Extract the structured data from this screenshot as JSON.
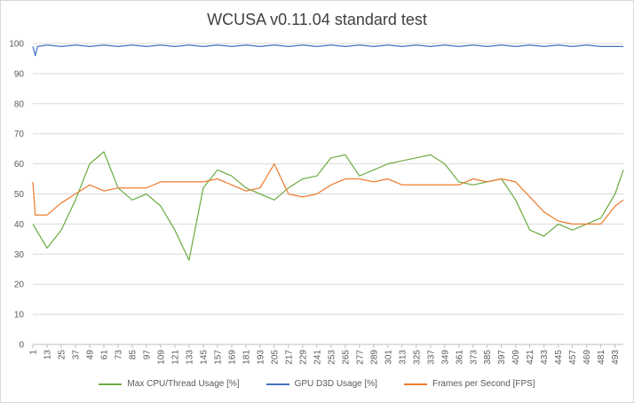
{
  "chart_data": {
    "type": "line",
    "title": "WCUSA v0.11.04 standard test",
    "xlabel": "",
    "ylabel": "",
    "ylim": [
      0,
      100
    ],
    "yticks": [
      0,
      10,
      20,
      30,
      40,
      50,
      60,
      70,
      80,
      90,
      100
    ],
    "xlim": [
      1,
      500
    ],
    "xticks": [
      1,
      13,
      25,
      37,
      49,
      61,
      73,
      85,
      97,
      109,
      121,
      133,
      145,
      157,
      169,
      181,
      193,
      205,
      217,
      229,
      241,
      253,
      265,
      277,
      289,
      301,
      313,
      325,
      337,
      349,
      361,
      373,
      385,
      397,
      409,
      421,
      433,
      445,
      457,
      469,
      481,
      493
    ],
    "grid": true,
    "legend_position": "bottom",
    "series": [
      {
        "name": "Max CPU/Thread Usage [%]",
        "color": "#70ad47",
        "x": [
          1,
          13,
          25,
          37,
          49,
          61,
          73,
          85,
          97,
          109,
          121,
          133,
          145,
          157,
          169,
          181,
          193,
          205,
          217,
          229,
          241,
          253,
          265,
          277,
          289,
          301,
          313,
          325,
          337,
          349,
          361,
          373,
          385,
          397,
          409,
          421,
          433,
          445,
          457,
          469,
          481,
          493,
          500
        ],
        "values": [
          40,
          32,
          38,
          48,
          60,
          64,
          52,
          48,
          50,
          46,
          38,
          28,
          52,
          58,
          56,
          52,
          50,
          48,
          52,
          55,
          56,
          62,
          63,
          56,
          58,
          60,
          61,
          62,
          63,
          60,
          54,
          53,
          54,
          55,
          48,
          38,
          36,
          40,
          38,
          40,
          42,
          50,
          58
        ]
      },
      {
        "name": "GPU D3D Usage [%]",
        "color": "#4472c4",
        "x": [
          1,
          3,
          5,
          13,
          25,
          37,
          49,
          61,
          73,
          85,
          97,
          109,
          121,
          133,
          145,
          157,
          169,
          181,
          193,
          205,
          217,
          229,
          241,
          253,
          265,
          277,
          289,
          301,
          313,
          325,
          337,
          349,
          361,
          373,
          385,
          397,
          409,
          421,
          433,
          445,
          457,
          469,
          481,
          493,
          500
        ],
        "values": [
          99,
          96,
          99,
          99.5,
          99,
          99.5,
          99,
          99.5,
          99,
          99.5,
          99,
          99.5,
          99,
          99.5,
          99,
          99.5,
          99,
          99.5,
          99,
          99.5,
          99,
          99.5,
          99,
          99.5,
          99,
          99.5,
          99,
          99.5,
          99,
          99.5,
          99,
          99.5,
          99,
          99.5,
          99,
          99.5,
          99,
          99.5,
          99,
          99.5,
          99,
          99.5,
          99,
          99,
          99
        ]
      },
      {
        "name": "Frames per Second [FPS]",
        "color": "#ed7d31",
        "x": [
          1,
          3,
          13,
          25,
          37,
          49,
          61,
          73,
          85,
          97,
          109,
          121,
          133,
          145,
          157,
          169,
          181,
          193,
          205,
          217,
          229,
          241,
          253,
          265,
          277,
          289,
          301,
          313,
          325,
          337,
          349,
          361,
          373,
          385,
          397,
          409,
          421,
          433,
          445,
          457,
          469,
          481,
          493,
          500
        ],
        "values": [
          54,
          43,
          43,
          47,
          50,
          53,
          51,
          52,
          52,
          52,
          54,
          54,
          54,
          54,
          55,
          53,
          51,
          52,
          60,
          50,
          49,
          50,
          53,
          55,
          55,
          54,
          55,
          53,
          53,
          53,
          53,
          53,
          55,
          54,
          55,
          54,
          49,
          44,
          41,
          40,
          40,
          40,
          46,
          48
        ]
      }
    ]
  }
}
